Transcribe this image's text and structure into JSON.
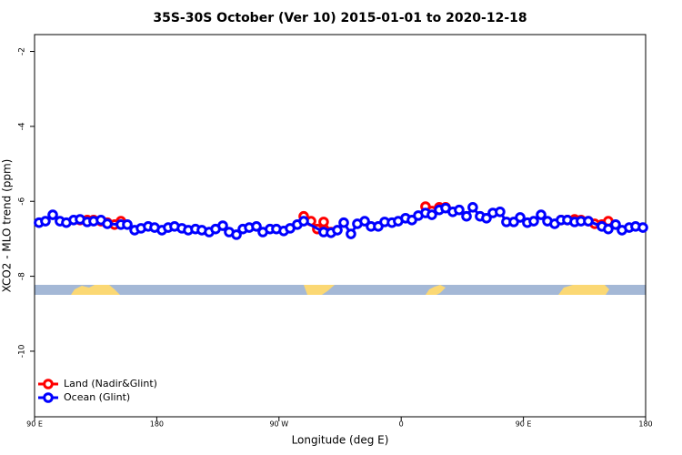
{
  "chart_data": {
    "type": "line",
    "title": "35S-30S October (Ver 10)   2015-01-01 to 2020-12-18",
    "x_label": "Longitude (deg E)",
    "y_label": "XCO2 - MLO trend (ppm)",
    "xlim": [
      90,
      540
    ],
    "ylim": [
      -11.75,
      -1.55
    ],
    "xticks": [
      {
        "value": 90,
        "label": "90 E"
      },
      180,
      {
        "value": 270,
        "label": "90 W"
      },
      {
        "value": 360,
        "label": "0"
      },
      {
        "value": 450,
        "label": "90 E"
      },
      {
        "value": 540,
        "label": "180"
      }
    ],
    "yticks": [
      -2,
      -4,
      -6,
      -8,
      -10
    ],
    "legend": "bottom-left",
    "series": [
      {
        "name": "Land (Nadir&Glint)",
        "color": "#ff0000",
        "x": [
          123.5,
          128.8,
          133.5,
          138.9,
          143.6,
          148.9,
          153.6,
          null,
          288.2,
          293.6,
          298.2,
          302.9,
          308.3,
          null,
          377.9,
          382.6,
          388.0,
          392.7,
          null,
          477.7,
          482.4,
          487.7,
          492.4,
          497.8,
          502.5,
          507.8,
          512.5
        ],
        "values": [
          -6.5,
          -6.5,
          -6.5,
          -6.53,
          -6.57,
          -6.62,
          -6.53,
          null,
          -6.4,
          -6.53,
          -6.74,
          -6.55,
          -6.82,
          null,
          -6.14,
          -6.26,
          -6.16,
          -6.16,
          null,
          -6.5,
          -6.5,
          -6.48,
          -6.5,
          -6.53,
          -6.6,
          -6.62,
          -6.53
        ]
      },
      {
        "name": "Ocean (Glint)",
        "color": "#0000ff",
        "x": [
          93.3,
          98.0,
          103.4,
          108.7,
          113.4,
          118.8,
          123.5,
          128.8,
          133.5,
          138.9,
          143.6,
          153.6,
          158.3,
          163.7,
          168.4,
          173.7,
          178.4,
          183.8,
          188.4,
          193.1,
          198.5,
          203.2,
          208.5,
          213.2,
          218.6,
          223.3,
          228.6,
          233.3,
          238.7,
          243.4,
          248.1,
          253.4,
          258.1,
          263.4,
          268.1,
          273.5,
          278.2,
          283.5,
          288.2,
          302.9,
          308.3,
          313.0,
          317.7,
          323.0,
          327.7,
          333.1,
          337.8,
          343.1,
          347.8,
          353.2,
          357.8,
          363.2,
          367.9,
          372.6,
          377.9,
          382.6,
          388.0,
          392.7,
          398.0,
          402.7,
          408.1,
          412.7,
          418.1,
          422.8,
          427.5,
          432.8,
          437.5,
          442.9,
          447.6,
          452.9,
          457.6,
          463.0,
          467.7,
          473.0,
          477.7,
          482.4,
          487.7,
          492.4,
          497.8,
          507.8,
          512.5,
          517.9,
          522.6,
          527.9,
          532.6,
          538.0
        ],
        "values": [
          -6.57,
          -6.53,
          -6.36,
          -6.53,
          -6.57,
          -6.5,
          -6.48,
          -6.55,
          -6.53,
          -6.5,
          -6.6,
          -6.62,
          -6.62,
          -6.77,
          -6.72,
          -6.67,
          -6.7,
          -6.77,
          -6.7,
          -6.67,
          -6.72,
          -6.77,
          -6.74,
          -6.77,
          -6.82,
          -6.74,
          -6.65,
          -6.82,
          -6.89,
          -6.74,
          -6.7,
          -6.67,
          -6.82,
          -6.74,
          -6.74,
          -6.79,
          -6.72,
          -6.62,
          -6.53,
          -6.82,
          -6.84,
          -6.77,
          -6.57,
          -6.87,
          -6.6,
          -6.53,
          -6.67,
          -6.67,
          -6.55,
          -6.57,
          -6.53,
          -6.45,
          -6.5,
          -6.38,
          -6.31,
          -6.36,
          -6.23,
          -6.18,
          -6.28,
          -6.23,
          -6.4,
          -6.16,
          -6.4,
          -6.45,
          -6.31,
          -6.28,
          -6.55,
          -6.55,
          -6.43,
          -6.57,
          -6.53,
          -6.36,
          -6.53,
          -6.6,
          -6.5,
          -6.5,
          -6.55,
          -6.53,
          -6.53,
          -6.67,
          -6.74,
          -6.62,
          -6.77,
          -6.7,
          -6.67,
          -6.7
        ]
      }
    ]
  }
}
